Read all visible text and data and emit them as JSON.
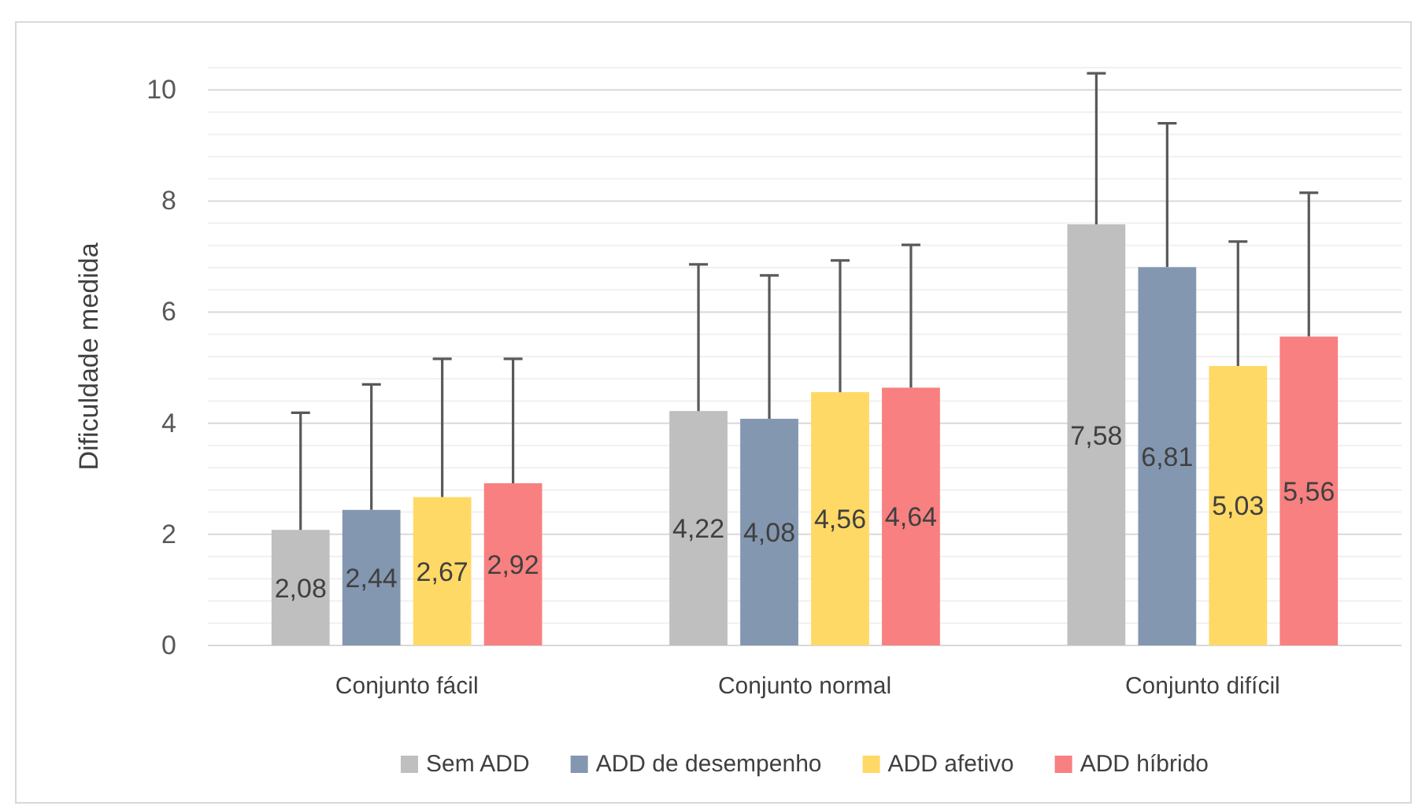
{
  "chart_data": {
    "type": "bar",
    "ylabel": "Dificuldade medida",
    "categories": [
      "Conjunto fácil",
      "Conjunto normal",
      "Conjunto difícil"
    ],
    "series": [
      {
        "name": "Sem ADD",
        "color": "#bfbfbf",
        "values": [
          2.08,
          4.22,
          7.58
        ],
        "errors": [
          [
            2.08,
            4.19
          ],
          [
            4.22,
            6.86
          ],
          [
            7.58,
            10.3
          ]
        ],
        "value_labels": [
          "2,08",
          "4,22",
          "7,58"
        ]
      },
      {
        "name": "ADD de desempenho",
        "color": "#8497b0",
        "values": [
          2.44,
          4.08,
          6.81
        ],
        "errors": [
          [
            2.44,
            4.7
          ],
          [
            4.08,
            6.66
          ],
          [
            6.81,
            9.4
          ]
        ],
        "value_labels": [
          "2,44",
          "4,08",
          "6,81"
        ]
      },
      {
        "name": "ADD afetivo",
        "color": "#ffd966",
        "values": [
          2.67,
          4.56,
          5.03
        ],
        "errors": [
          [
            2.67,
            5.16
          ],
          [
            4.56,
            6.93
          ],
          [
            5.03,
            7.27
          ]
        ],
        "value_labels": [
          "2,67",
          "4,56",
          "5,03"
        ]
      },
      {
        "name": "ADD híbrido",
        "color": "#f88080",
        "values": [
          2.92,
          4.64,
          5.56
        ],
        "errors": [
          [
            2.92,
            5.16
          ],
          [
            4.64,
            7.21
          ],
          [
            5.56,
            8.15
          ]
        ],
        "value_labels": [
          "2,92",
          "4,64",
          "5,56"
        ]
      }
    ],
    "ylim": [
      0,
      10.4
    ],
    "yticks": [
      0,
      {
        "value": 0.4,
        "label": null
      },
      {
        "value": 0.8,
        "label": null
      },
      {
        "value": 1.2,
        "label": null
      },
      {
        "value": 1.6,
        "label": null
      },
      2,
      {
        "value": 2.4,
        "label": null
      },
      {
        "value": 2.8,
        "label": null
      },
      {
        "value": 3.2,
        "label": null
      },
      {
        "value": 3.6,
        "label": null
      },
      4,
      {
        "value": 4.4,
        "label": null
      },
      {
        "value": 4.8,
        "label": null
      },
      {
        "value": 5.2,
        "label": null
      },
      {
        "value": 5.6,
        "label": null
      },
      6,
      {
        "value": 6.4,
        "label": null
      },
      {
        "value": 6.8,
        "label": null
      },
      {
        "value": 7.2,
        "label": null
      },
      {
        "value": 7.6,
        "label": null
      },
      8,
      {
        "value": 8.4,
        "label": null
      },
      {
        "value": 8.8,
        "label": null
      },
      {
        "value": 9.2,
        "label": null
      },
      {
        "value": 9.6,
        "label": null
      },
      10,
      {
        "value": 10.4,
        "label": null
      }
    ],
    "grid": "y",
    "legend": "bottom"
  }
}
